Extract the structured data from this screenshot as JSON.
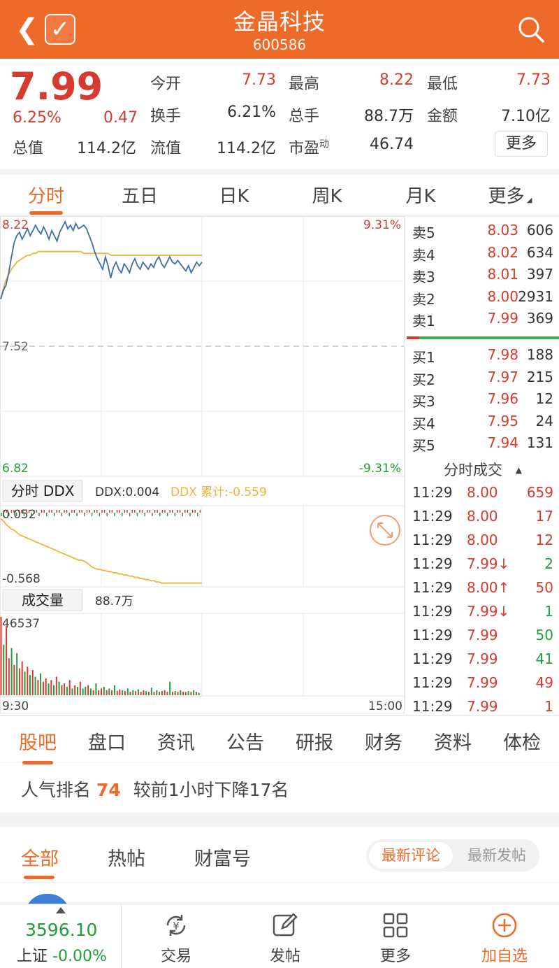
{
  "header": {
    "title": "金晶科技",
    "code": "600586"
  },
  "quote": {
    "price": "7.99",
    "change_pct": "6.25%",
    "change": "0.47",
    "fields": [
      {
        "label": "今开",
        "value": "7.73",
        "color": "red"
      },
      {
        "label": "最高",
        "value": "8.22",
        "color": "red"
      },
      {
        "label": "最低",
        "value": "7.73",
        "color": "red"
      },
      {
        "label": "换手",
        "value": "6.21%",
        "color": "dark"
      },
      {
        "label": "总手",
        "value": "88.7万",
        "color": "dark"
      },
      {
        "label": "金额",
        "value": "7.10亿",
        "color": "dark"
      },
      {
        "label": "总值",
        "value": "114.2亿",
        "color": "dark"
      },
      {
        "label": "流值",
        "value": "114.2亿",
        "color": "dark"
      },
      {
        "label": "市盈",
        "sup": "动",
        "value": "46.74",
        "color": "dark"
      }
    ],
    "more_button": "更多"
  },
  "chart_tabs": [
    "分时",
    "五日",
    "日K",
    "周K",
    "月K",
    "更多"
  ],
  "chart_tabs_active": 0,
  "chart_data": {
    "type": "line",
    "price_panel": {
      "y_top_label": "8.22",
      "y_mid_label": "7.52",
      "y_bottom_label": "6.82",
      "pct_top_label": "9.31%",
      "pct_bottom_label": "-9.31%",
      "ylim": [
        6.82,
        8.22
      ],
      "prev_close": 7.52,
      "x_start": "9:30",
      "x_end": "15:00",
      "price": [
        7.78,
        7.83,
        7.86,
        7.93,
        8.02,
        8.1,
        8.14,
        8.16,
        8.12,
        8.15,
        8.18,
        8.14,
        8.17,
        8.2,
        8.17,
        8.15,
        8.19,
        8.16,
        8.12,
        8.17,
        8.14,
        8.11,
        8.16,
        8.19,
        8.22,
        8.18,
        8.2,
        8.17,
        8.21,
        8.18,
        8.19,
        8.2,
        8.18,
        8.14,
        8.1,
        8.05,
        8.01,
        7.98,
        7.95,
        8.02,
        7.97,
        7.9,
        7.96,
        7.99,
        7.95,
        7.93,
        7.98,
        7.96,
        7.93,
        7.98,
        8.01,
        7.97,
        7.95,
        7.99,
        7.97,
        7.95,
        7.98,
        7.96,
        8.0,
        8.02,
        7.98,
        7.96,
        7.99,
        8.02,
        7.99,
        7.98,
        8.0,
        7.98,
        7.96,
        7.94,
        7.97,
        7.93,
        7.96,
        7.99,
        7.97,
        7.99
      ],
      "avg": [
        7.78,
        7.84,
        7.89,
        7.92,
        7.95,
        7.97,
        7.99,
        8.0,
        8.01,
        8.02,
        8.03,
        8.03,
        8.04,
        8.04,
        8.05,
        8.05,
        8.05,
        8.05,
        8.05,
        8.05,
        8.05,
        8.05,
        8.05,
        8.05,
        8.05,
        8.05,
        8.05,
        8.05,
        8.05,
        8.05,
        8.05,
        8.04,
        8.04,
        8.04,
        8.04,
        8.04,
        8.04,
        8.04,
        8.04,
        8.04,
        8.04,
        8.03,
        8.03,
        8.03,
        8.03,
        8.03,
        8.03,
        8.03,
        8.03,
        8.03,
        8.03,
        8.03,
        8.03,
        8.03,
        8.03,
        8.03,
        8.03,
        8.03,
        8.03,
        8.03,
        8.03,
        8.03,
        8.03,
        8.03,
        8.03,
        8.03,
        8.03,
        8.03,
        8.03,
        8.03,
        8.03,
        8.03,
        8.03,
        8.03,
        8.03,
        8.03
      ]
    },
    "ddx_panel": {
      "tab_label": "分时 DDX",
      "ddx_value": "DDX:0.004",
      "ddx_cum": "DDX 累计:-0.559",
      "y_top_label": "0.052",
      "y_bottom_label": "-0.568",
      "cum": [
        0.0,
        -0.02,
        -0.05,
        -0.07,
        -0.09,
        -0.1,
        -0.12,
        -0.14,
        -0.15,
        -0.16,
        -0.17,
        -0.18,
        -0.19,
        -0.2,
        -0.21,
        -0.22,
        -0.23,
        -0.24,
        -0.25,
        -0.26,
        -0.27,
        -0.28,
        -0.29,
        -0.3,
        -0.31,
        -0.32,
        -0.33,
        -0.34,
        -0.35,
        -0.36,
        -0.36,
        -0.37,
        -0.38,
        -0.4,
        -0.42,
        -0.43,
        -0.44,
        -0.44,
        -0.45,
        -0.45,
        -0.46,
        -0.46,
        -0.47,
        -0.47,
        -0.48,
        -0.48,
        -0.49,
        -0.49,
        -0.5,
        -0.5,
        -0.51,
        -0.51,
        -0.52,
        -0.52,
        -0.53,
        -0.53,
        -0.54,
        -0.54,
        -0.55,
        -0.55,
        -0.56,
        -0.56,
        -0.56,
        -0.56,
        -0.56,
        -0.56,
        -0.56,
        -0.56,
        -0.56,
        -0.56,
        -0.56,
        -0.56,
        -0.56,
        -0.56,
        -0.56,
        -0.559
      ]
    },
    "volume_panel": {
      "tab_label": "成交量",
      "total": "88.7万",
      "y_top_label": "46537",
      "bars": [
        46537,
        30000,
        41000,
        22000,
        28000,
        18000,
        25000,
        16000,
        20000,
        14000,
        17000,
        12000,
        15000,
        11000,
        9000,
        13000,
        8000,
        10000,
        7000,
        9000,
        6000,
        11000,
        8000,
        6000,
        7000,
        5000,
        9000,
        4000,
        6000,
        5000,
        8000,
        4000,
        5000,
        6000,
        4000,
        3000,
        7000,
        3000,
        4000,
        5000,
        3000,
        4000,
        3000,
        6000,
        2500,
        3500,
        3000,
        2500,
        4000,
        2000,
        3000,
        2500,
        3500,
        2000,
        3000,
        2500,
        2000,
        4500,
        2000,
        3000,
        2000,
        2500,
        3000,
        2000,
        8000,
        2000,
        2500,
        2000,
        3000,
        2000,
        2000,
        2500,
        2000,
        3000,
        2000,
        1500
      ],
      "bar_up": [
        1,
        0,
        1,
        1,
        0,
        1,
        0,
        1,
        1,
        0,
        1,
        0,
        1,
        0,
        1,
        0,
        1,
        1,
        0,
        1,
        0,
        1,
        0,
        1,
        1,
        0,
        1,
        0,
        1,
        0,
        1,
        0,
        0,
        1,
        0,
        1,
        0,
        1,
        1,
        0,
        1,
        0,
        1,
        0,
        1,
        1,
        0,
        1,
        0,
        1,
        0,
        1,
        0,
        1,
        1,
        0,
        1,
        0,
        1,
        0,
        1,
        0,
        1,
        1,
        0,
        1,
        0,
        1,
        0,
        1,
        1,
        0,
        1,
        0,
        1,
        0
      ]
    }
  },
  "orderbook": {
    "asks": [
      {
        "label": "卖5",
        "price": "8.03",
        "vol": "606"
      },
      {
        "label": "卖4",
        "price": "8.02",
        "vol": "634"
      },
      {
        "label": "卖3",
        "price": "8.01",
        "vol": "397"
      },
      {
        "label": "卖2",
        "price": "8.00",
        "vol": "2931"
      },
      {
        "label": "卖1",
        "price": "7.99",
        "vol": "369"
      }
    ],
    "bids": [
      {
        "label": "买1",
        "price": "7.98",
        "vol": "188"
      },
      {
        "label": "买2",
        "price": "7.97",
        "vol": "215"
      },
      {
        "label": "买3",
        "price": "7.96",
        "vol": "12"
      },
      {
        "label": "买4",
        "price": "7.95",
        "vol": "24"
      },
      {
        "label": "买5",
        "price": "7.94",
        "vol": "131"
      }
    ]
  },
  "ticks": {
    "title": "分时成交",
    "rows": [
      {
        "time": "11:29",
        "price": "8.00",
        "vol": "659",
        "vcolor": "red"
      },
      {
        "time": "11:29",
        "price": "8.00",
        "vol": "17",
        "vcolor": "red"
      },
      {
        "time": "11:29",
        "price": "8.00",
        "vol": "12",
        "vcolor": "red"
      },
      {
        "time": "11:29",
        "price": "7.99↓",
        "vol": "2",
        "vcolor": "green"
      },
      {
        "time": "11:29",
        "price": "8.00↑",
        "vol": "50",
        "vcolor": "red"
      },
      {
        "time": "11:29",
        "price": "7.99↓",
        "vol": "1",
        "vcolor": "green"
      },
      {
        "time": "11:29",
        "price": "7.99",
        "vol": "50",
        "vcolor": "green"
      },
      {
        "time": "11:29",
        "price": "7.99",
        "vol": "41",
        "vcolor": "green"
      },
      {
        "time": "11:29",
        "price": "7.99",
        "vol": "49",
        "vcolor": "red"
      },
      {
        "time": "11:29",
        "price": "7.99",
        "vol": "1",
        "vcolor": "red"
      }
    ]
  },
  "community_tabs": [
    "股吧",
    "盘口",
    "资讯",
    "公告",
    "研报",
    "财务",
    "资料",
    "体检"
  ],
  "community_tabs_active": 0,
  "rank": {
    "prefix": "人气排名",
    "number": "74",
    "suffix": "较前1小时下降17名"
  },
  "feed_tabs": [
    "全部",
    "热帖",
    "财富号"
  ],
  "feed_tabs_active": 0,
  "sort_toggle": {
    "active": "最新评论",
    "inactive": "最新发帖"
  },
  "bottom_bar": {
    "index_value": "3596.10",
    "index_name": "上证",
    "index_change": "-0.00%",
    "items": [
      {
        "label": "交易",
        "icon": "yuan-refresh-icon"
      },
      {
        "label": "发帖",
        "icon": "edit-icon"
      },
      {
        "label": "更多",
        "icon": "grid-icon"
      },
      {
        "label": "加自选",
        "icon": "plus-circle-icon"
      }
    ]
  },
  "colors": {
    "accent": "#ee6a28",
    "up": "#d63b2f",
    "down": "#1f9e3a",
    "avg_line": "#f0b43c",
    "price_line": "#3e6fa8"
  }
}
